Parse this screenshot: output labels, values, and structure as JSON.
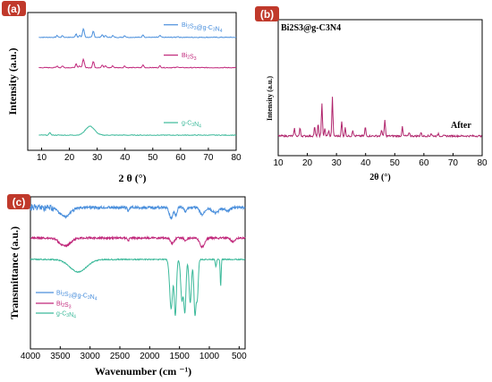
{
  "colors": {
    "series_blue": "#4a8fdc",
    "series_magenta": "#c0267a",
    "series_teal": "#3bb99a",
    "panel_b_line": "#b0246c",
    "label_box": "#c0392b"
  },
  "chart_data": [
    {
      "panel": "(a)",
      "type": "line",
      "xlabel": "2 θ (°)",
      "ylabel": "Intensity (a.u.)",
      "xlim": [
        5,
        80
      ],
      "xticks": [
        "10",
        "20",
        "30",
        "40",
        "50",
        "60",
        "70",
        "80"
      ],
      "grid": false,
      "legend_position": "inline-right",
      "series": [
        {
          "name": "Bi2S3@g-C3N4",
          "label_main": "Bi",
          "sub1": "2",
          "mid": "S",
          "sub2": "3",
          "tail": "@g-C",
          "sub3": "3",
          "tail2": "N",
          "sub4": "4",
          "baseline_frac": 0.82,
          "color_key": "series_blue",
          "peaks": [
            [
              15.6,
              2
            ],
            [
              17.5,
              2
            ],
            [
              22.4,
              4
            ],
            [
              23.7,
              2
            ],
            [
              24.9,
              6
            ],
            [
              25.2,
              5
            ],
            [
              28.6,
              7
            ],
            [
              31.8,
              3
            ],
            [
              33.0,
              2
            ],
            [
              35.6,
              2
            ],
            [
              39.9,
              2
            ],
            [
              46.5,
              3
            ],
            [
              52.6,
              2
            ],
            [
              59.0,
              1
            ]
          ]
        },
        {
          "name": "Bi2S3",
          "label_main": "Bi",
          "sub1": "2",
          "mid": "S",
          "sub2": "3",
          "tail": "",
          "sub3": "",
          "tail2": "",
          "sub4": "",
          "baseline_frac": 0.6,
          "color_key": "series_magenta",
          "peaks": [
            [
              15.6,
              2
            ],
            [
              17.5,
              2
            ],
            [
              22.4,
              4
            ],
            [
              23.7,
              2
            ],
            [
              24.9,
              6
            ],
            [
              25.2,
              5
            ],
            [
              28.6,
              7
            ],
            [
              31.8,
              3
            ],
            [
              33.0,
              2
            ],
            [
              35.6,
              2
            ],
            [
              39.9,
              2
            ],
            [
              46.5,
              3
            ],
            [
              52.6,
              2
            ],
            [
              59.0,
              1
            ]
          ]
        },
        {
          "name": "g-C3N4",
          "label_main": "g-C",
          "sub1": "3",
          "mid": "N",
          "sub2": "4",
          "tail": "",
          "sub3": "",
          "tail2": "",
          "sub4": "",
          "baseline_frac": 0.11,
          "color_key": "series_teal",
          "peaks": [
            [
              13.0,
              3
            ],
            [
              27.4,
              10
            ]
          ]
        }
      ]
    },
    {
      "panel": "(b)",
      "type": "line",
      "title": "Bi2S3@g-C3N4",
      "annotation": "After",
      "xlabel": "2θ (°)",
      "ylabel": "Intensity (a.u.)",
      "xlim": [
        10,
        80
      ],
      "xticks": [
        "10",
        "20",
        "30",
        "40",
        "50",
        "60",
        "70",
        "80"
      ],
      "grid": false,
      "series": [
        {
          "color_key": "panel_b_line",
          "peaks": [
            [
              15.6,
              8
            ],
            [
              17.5,
              9
            ],
            [
              22.5,
              10
            ],
            [
              23.7,
              13
            ],
            [
              25.0,
              37
            ],
            [
              26.0,
              8
            ],
            [
              27.3,
              6
            ],
            [
              28.6,
              43
            ],
            [
              31.8,
              16
            ],
            [
              33.0,
              9
            ],
            [
              35.6,
              7
            ],
            [
              39.9,
              10
            ],
            [
              45.5,
              7
            ],
            [
              46.6,
              18
            ],
            [
              52.6,
              10
            ],
            [
              55.0,
              4
            ],
            [
              59.0,
              4
            ],
            [
              62.5,
              3
            ],
            [
              65.0,
              3
            ]
          ]
        }
      ]
    },
    {
      "panel": "(c)",
      "type": "line",
      "xlabel": "Wavenumber  (cm ⁻¹)",
      "ylabel": "Transmittance (a.u.)",
      "xlim": [
        4000,
        400
      ],
      "xticks": [
        "4000",
        "3500",
        "3000",
        "2500",
        "2000",
        "1500",
        "1000",
        "500"
      ],
      "grid": false,
      "legend_position": "lower-left",
      "series": [
        {
          "name": "Bi2S3@g-C3N4",
          "label_main": "Bi",
          "sub1": "2",
          "mid": "S",
          "sub2": "3",
          "tail": "@g-C",
          "sub3": "3",
          "tail2": "N",
          "sub4": "4",
          "color_key": "series_blue"
        },
        {
          "name": "Bi2S3",
          "label_main": "Bi",
          "sub1": "2",
          "mid": "S",
          "sub2": "3",
          "tail": "",
          "sub3": "",
          "tail2": "",
          "sub4": "",
          "color_key": "series_magenta"
        },
        {
          "name": "g-C3N4",
          "label_main": "g-C",
          "sub1": "3",
          "mid": "N",
          "sub2": "4",
          "tail": "",
          "sub3": "",
          "tail2": "",
          "sub4": "",
          "color_key": "series_teal"
        }
      ]
    }
  ]
}
